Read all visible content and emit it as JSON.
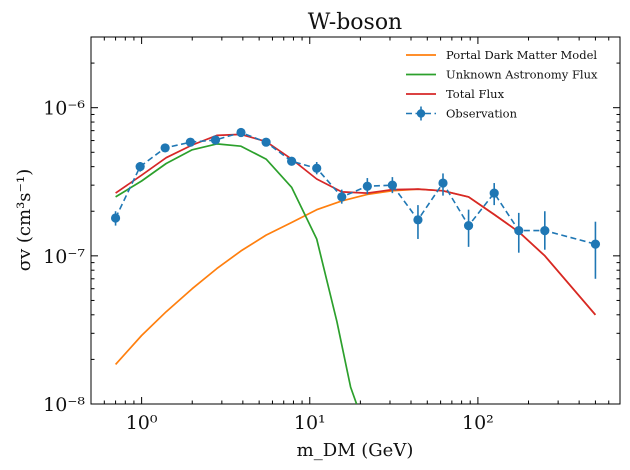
{
  "chart_data": {
    "type": "line",
    "title": "W-boson",
    "xlabel": "m_DM (GeV)",
    "ylabel": "σv (cm³s⁻¹)",
    "xscale": "log",
    "yscale": "log",
    "xlim": [
      0.5,
      700
    ],
    "ylim": [
      1e-08,
      3e-06
    ],
    "grid": false,
    "legend_position": "top-right",
    "x_ticks": [
      {
        "value": 1,
        "label": "10⁰"
      },
      {
        "value": 10,
        "label": "10¹"
      },
      {
        "value": 100,
        "label": "10²"
      }
    ],
    "y_ticks": [
      {
        "value": 1e-08,
        "label": "10⁻⁸"
      },
      {
        "value": 1e-07,
        "label": "10⁻⁷"
      },
      {
        "value": 1e-06,
        "label": "10⁻⁶"
      }
    ],
    "series": [
      {
        "name": "Portal Dark Matter Model",
        "color": "#ff7f0e",
        "style": "line",
        "x": [
          0.7,
          1.0,
          1.4,
          2.0,
          2.8,
          3.9,
          5.5,
          7.8,
          11,
          15.5,
          22,
          31,
          44,
          62,
          88,
          125,
          175,
          250,
          500
        ],
        "y": [
          1.85e-08,
          2.9e-08,
          4.2e-08,
          6e-08,
          8.2e-08,
          1.08e-07,
          1.38e-07,
          1.68e-07,
          2.05e-07,
          2.35e-07,
          2.6e-07,
          2.75e-07,
          2.82e-07,
          2.75e-07,
          2.5e-07,
          1.9e-07,
          1.45e-07,
          1e-07,
          4e-08
        ]
      },
      {
        "name": "Unknown Astronomy Flux",
        "color": "#2ca02c",
        "style": "line",
        "x": [
          0.7,
          1.0,
          1.4,
          2.0,
          2.8,
          3.9,
          5.5,
          7.8,
          11,
          14.5,
          17.5,
          19
        ],
        "y": [
          2.5e-07,
          3.2e-07,
          4.2e-07,
          5.2e-07,
          5.7e-07,
          5.5e-07,
          4.5e-07,
          2.9e-07,
          1.3e-07,
          3.6e-08,
          1.3e-08,
          1e-08
        ]
      },
      {
        "name": "Total Flux",
        "color": "#d62728",
        "style": "line",
        "x": [
          0.7,
          1.0,
          1.4,
          2.0,
          2.8,
          3.9,
          5.5,
          7.8,
          11,
          15.5,
          22,
          31,
          44,
          62,
          88,
          125,
          175,
          250,
          500
        ],
        "y": [
          2.65e-07,
          3.5e-07,
          4.6e-07,
          5.6e-07,
          6.5e-07,
          6.6e-07,
          5.9e-07,
          4.5e-07,
          3.3e-07,
          2.7e-07,
          2.65e-07,
          2.8e-07,
          2.82e-07,
          2.75e-07,
          2.5e-07,
          1.9e-07,
          1.45e-07,
          1e-07,
          4e-08
        ]
      },
      {
        "name": "Observation",
        "color": "#1f77b4",
        "style": "dashed-errorbar",
        "x": [
          0.7,
          0.98,
          1.38,
          1.95,
          2.75,
          3.9,
          5.5,
          7.8,
          11,
          15.5,
          22,
          31,
          44,
          62,
          88,
          125,
          175,
          250,
          500
        ],
        "y": [
          1.8e-07,
          4e-07,
          5.35e-07,
          5.85e-07,
          6.05e-07,
          6.8e-07,
          5.85e-07,
          4.35e-07,
          3.9e-07,
          2.5e-07,
          2.95e-07,
          3e-07,
          1.75e-07,
          3.1e-07,
          1.6e-07,
          2.65e-07,
          1.48e-07,
          1.48e-07,
          1.2e-07
        ],
        "yerr_low": [
          1.6e-07,
          3.7e-07,
          5.05e-07,
          5.55e-07,
          5.75e-07,
          6.4e-07,
          5.55e-07,
          4.1e-07,
          3.55e-07,
          2.25e-07,
          2.6e-07,
          2.65e-07,
          1.3e-07,
          2.55e-07,
          1.15e-07,
          2.2e-07,
          1.05e-07,
          1.1e-07,
          7e-08
        ],
        "yerr_high": [
          2e-07,
          4.3e-07,
          5.65e-07,
          6.15e-07,
          6.35e-07,
          7.2e-07,
          6.15e-07,
          4.6e-07,
          4.3e-07,
          2.8e-07,
          3.35e-07,
          3.4e-07,
          2.2e-07,
          3.6e-07,
          2.05e-07,
          3.1e-07,
          1.95e-07,
          2e-07,
          1.7e-07
        ]
      }
    ]
  }
}
